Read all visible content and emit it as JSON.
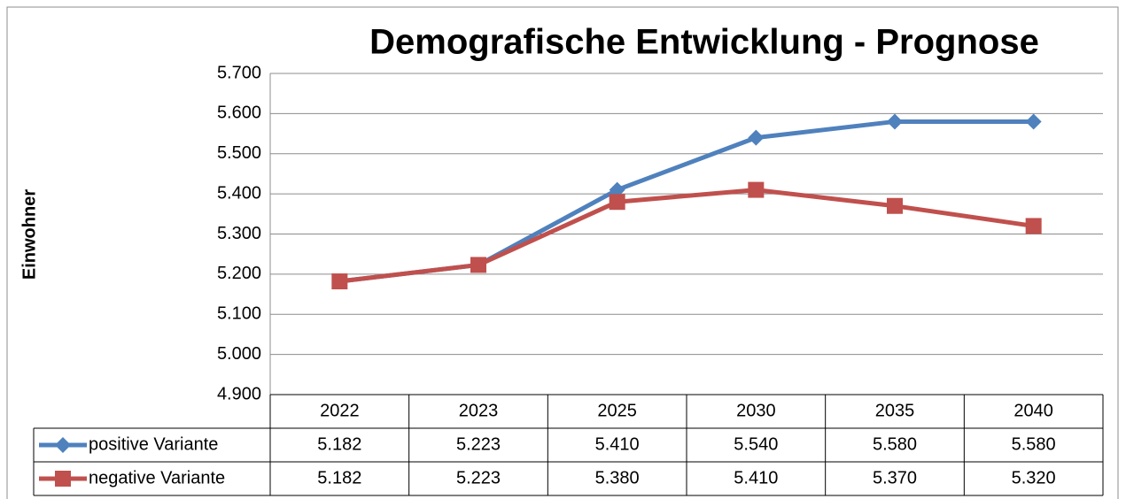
{
  "chart_data": {
    "type": "line",
    "title": "Demografische Entwicklung - Prognose",
    "y_label": "Einwohner",
    "categories": [
      "2022",
      "2023",
      "2025",
      "2030",
      "2035",
      "2040"
    ],
    "series": [
      {
        "name": "positive Variante",
        "color": "#4f81bd",
        "marker": "diamond",
        "values": [
          5182,
          5223,
          5410,
          5540,
          5580,
          5580
        ],
        "value_labels": [
          "5.182",
          "5.223",
          "5.410",
          "5.540",
          "5.580",
          "5.580"
        ]
      },
      {
        "name": "negative Variante",
        "color": "#c0504d",
        "marker": "square",
        "values": [
          5182,
          5223,
          5380,
          5410,
          5370,
          5320
        ],
        "value_labels": [
          "5.182",
          "5.223",
          "5.380",
          "5.410",
          "5.370",
          "5.320"
        ]
      }
    ],
    "ylim": [
      4900,
      5700
    ],
    "yticks": [
      {
        "value": 4900,
        "label": "4.900"
      },
      {
        "value": 5000,
        "label": "5.000"
      },
      {
        "value": 5100,
        "label": "5.100"
      },
      {
        "value": 5200,
        "label": "5.200"
      },
      {
        "value": 5300,
        "label": "5.300"
      },
      {
        "value": 5400,
        "label": "5.400"
      },
      {
        "value": 5500,
        "label": "5.500"
      },
      {
        "value": 5600,
        "label": "5.600"
      },
      {
        "value": 5700,
        "label": "5.700"
      }
    ],
    "grid": true
  }
}
